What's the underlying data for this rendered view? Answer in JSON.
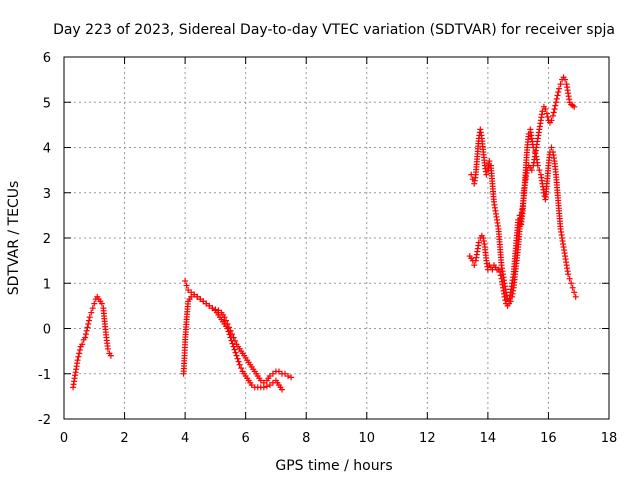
{
  "chart_data": {
    "type": "scatter",
    "title": "Day 223 of 2023, Sidereal Day-to-day VTEC variation (SDTVAR) for receiver spja",
    "xlabel": "GPS time / hours",
    "ylabel": "SDTVAR / TECUs",
    "xlim": [
      0,
      18
    ],
    "ylim": [
      -2,
      6
    ],
    "xticks": [
      0,
      2,
      4,
      6,
      8,
      10,
      12,
      14,
      16,
      18
    ],
    "yticks": [
      -2,
      -1,
      0,
      1,
      2,
      3,
      4,
      5,
      6
    ],
    "grid": true,
    "marker": "+",
    "series": [
      {
        "name": "SDTVAR spja",
        "color": "#ff0000",
        "segments": [
          {
            "x": [
              0.3,
              0.35,
              0.4,
              0.45,
              0.5,
              0.55,
              0.6,
              0.65,
              0.7,
              0.75,
              0.8,
              0.85,
              0.9,
              0.95,
              1.0,
              1.05,
              1.1,
              1.15,
              1.2,
              1.25,
              1.3,
              1.35,
              1.4,
              1.45,
              1.5,
              1.55
            ],
            "y": [
              -1.3,
              -1.1,
              -0.9,
              -0.7,
              -0.55,
              -0.4,
              -0.35,
              -0.25,
              -0.2,
              -0.05,
              0.1,
              0.25,
              0.35,
              0.45,
              0.55,
              0.65,
              0.7,
              0.65,
              0.6,
              0.55,
              0.45,
              0.1,
              -0.2,
              -0.45,
              -0.55,
              -0.6
            ]
          },
          {
            "x": [
              3.95,
              3.98,
              4.0,
              4.05,
              4.1,
              4.2,
              4.3,
              4.4,
              4.5,
              4.6,
              4.7,
              4.8,
              4.9,
              5.0,
              5.1,
              5.2,
              5.3,
              5.4,
              5.5,
              5.6,
              5.7,
              5.8,
              5.9,
              6.0,
              6.1,
              6.2,
              6.3,
              6.4,
              6.5,
              6.6,
              6.7,
              6.8,
              6.9,
              7.0,
              7.1,
              7.2,
              7.3,
              7.4,
              7.5
            ],
            "y": [
              -1.0,
              -0.6,
              -0.3,
              0.2,
              0.6,
              0.7,
              0.75,
              0.7,
              0.65,
              0.6,
              0.55,
              0.5,
              0.45,
              0.42,
              0.4,
              0.35,
              0.25,
              0.1,
              -0.05,
              -0.2,
              -0.35,
              -0.45,
              -0.55,
              -0.65,
              -0.75,
              -0.85,
              -0.95,
              -1.05,
              -1.15,
              -1.2,
              -1.15,
              -1.05,
              -1.0,
              -0.95,
              -0.95,
              -1.0,
              -1.0,
              -1.05,
              -1.08
            ]
          },
          {
            "x": [
              4.0,
              4.05,
              4.1,
              4.2,
              4.3,
              4.4,
              4.5,
              4.6,
              4.7,
              4.8,
              4.9,
              5.0,
              5.1,
              5.2,
              5.3,
              5.4,
              5.5,
              5.6,
              5.7,
              5.8,
              5.9,
              6.0,
              6.1,
              6.2,
              6.3,
              6.4,
              6.5,
              6.6,
              6.7,
              6.8,
              6.9,
              7.0,
              7.1,
              7.2
            ],
            "y": [
              1.05,
              0.95,
              0.85,
              0.8,
              0.75,
              0.7,
              0.65,
              0.6,
              0.55,
              0.5,
              0.45,
              0.4,
              0.3,
              0.2,
              0.1,
              0.0,
              -0.2,
              -0.4,
              -0.6,
              -0.8,
              -0.95,
              -1.05,
              -1.15,
              -1.25,
              -1.3,
              -1.3,
              -1.3,
              -1.3,
              -1.28,
              -1.25,
              -1.2,
              -1.15,
              -1.25,
              -1.35
            ]
          },
          {
            "x": [
              13.4,
              13.5,
              13.55,
              13.6,
              13.65,
              13.7,
              13.75,
              13.8,
              13.85,
              13.9,
              13.95,
              14.0,
              14.05,
              14.1,
              14.15,
              14.2,
              14.25,
              14.3,
              14.35,
              14.4,
              14.45,
              14.5,
              14.55,
              14.6,
              14.65,
              14.7,
              14.75,
              14.8,
              14.85,
              14.9,
              14.95,
              15.0,
              15.05,
              15.1,
              15.15,
              15.2,
              15.25,
              15.3,
              15.35,
              15.4,
              15.45,
              15.5,
              15.55,
              15.6,
              15.65,
              15.7,
              15.75,
              15.8,
              15.85,
              15.9,
              15.95,
              16.0,
              16.05,
              16.1,
              16.15,
              16.2,
              16.25,
              16.3,
              16.35,
              16.4,
              16.45,
              16.5,
              16.55,
              16.6,
              16.65,
              16.7,
              16.75,
              16.8,
              16.85
            ],
            "y": [
              1.6,
              1.5,
              1.4,
              1.5,
              1.7,
              1.9,
              2.0,
              2.05,
              2.0,
              1.8,
              1.5,
              1.3,
              1.4,
              1.35,
              1.3,
              1.4,
              1.35,
              1.3,
              1.3,
              1.25,
              1.1,
              0.9,
              0.7,
              0.55,
              0.5,
              0.6,
              0.8,
              1.0,
              1.2,
              1.6,
              2.0,
              2.4,
              2.5,
              2.3,
              2.6,
              3.1,
              3.3,
              3.5,
              3.6,
              3.55,
              3.5,
              3.6,
              3.8,
              4.0,
              4.2,
              4.4,
              4.6,
              4.8,
              4.9,
              4.85,
              4.75,
              4.6,
              4.55,
              4.6,
              4.7,
              4.85,
              5.0,
              5.15,
              5.3,
              5.4,
              5.5,
              5.55,
              5.5,
              5.4,
              5.2,
              5.0,
              4.95,
              4.93,
              4.9
            ]
          },
          {
            "x": [
              13.45,
              13.5,
              13.55,
              13.6,
              13.65,
              13.7,
              13.75,
              13.8,
              13.85,
              13.9,
              13.95,
              14.0,
              14.05,
              14.1,
              14.15,
              14.2,
              14.25,
              14.3,
              14.35,
              14.4,
              14.45,
              14.5,
              14.55,
              14.6,
              14.65,
              14.7,
              14.75,
              14.8,
              14.85,
              14.9,
              14.95,
              15.0,
              15.05,
              15.1,
              15.15,
              15.2,
              15.25,
              15.3,
              15.35,
              15.4,
              15.45,
              15.5,
              15.55,
              15.6,
              15.65,
              15.7,
              15.75,
              15.8,
              15.85,
              15.9,
              15.95,
              16.0,
              16.05,
              16.1,
              16.15,
              16.2,
              16.25,
              16.3,
              16.35,
              16.4,
              16.45,
              16.5,
              16.55,
              16.6,
              16.65,
              16.7,
              16.75,
              16.8,
              16.85,
              16.9
            ],
            "y": [
              3.4,
              3.3,
              3.2,
              3.4,
              3.8,
              4.2,
              4.4,
              4.2,
              3.9,
              3.6,
              3.4,
              3.5,
              3.7,
              3.6,
              3.2,
              2.8,
              2.6,
              2.4,
              2.2,
              1.8,
              1.4,
              1.2,
              1.0,
              0.8,
              0.65,
              0.55,
              0.6,
              0.7,
              0.9,
              1.2,
              1.5,
              1.8,
              2.2,
              2.5,
              2.7,
              3.0,
              3.5,
              4.0,
              4.3,
              4.4,
              4.2,
              4.0,
              3.9,
              3.8,
              3.6,
              3.5,
              3.4,
              3.2,
              3.0,
              2.85,
              3.2,
              3.6,
              3.9,
              4.0,
              3.9,
              3.7,
              3.4,
              3.0,
              2.6,
              2.2,
              2.0,
              1.8,
              1.6,
              1.4,
              1.2,
              1.1,
              1.0,
              0.9,
              0.8,
              0.7
            ]
          }
        ]
      }
    ]
  }
}
